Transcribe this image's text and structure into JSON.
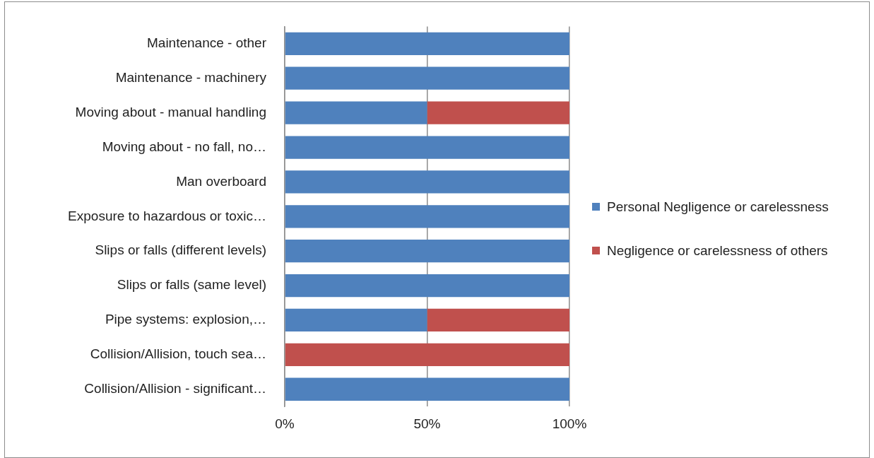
{
  "chart_data": {
    "type": "bar",
    "orientation": "horizontal",
    "stacked": true,
    "categories": [
      "Maintenance - other",
      "Maintenance - machinery",
      "Moving about - manual handling",
      "Moving about - no fall, no…",
      "Man overboard",
      "Exposure to hazardous or toxic…",
      "Slips or falls (different levels)",
      "Slips or falls (same level)",
      "Pipe systems: explosion,…",
      "Collision/Allision, touch sea…",
      "Collision/Allision - significant…"
    ],
    "series": [
      {
        "name": "Personal Negligence or carelessness",
        "color": "#4f81bd",
        "values": [
          100,
          100,
          50,
          100,
          100,
          100,
          100,
          100,
          50,
          0,
          100
        ]
      },
      {
        "name": "Negligence or carelessness of others",
        "color": "#c0504d",
        "values": [
          0,
          0,
          50,
          0,
          0,
          0,
          0,
          0,
          50,
          100,
          0
        ]
      }
    ],
    "xlim": [
      0,
      100
    ],
    "xticks": [
      {
        "value": 0,
        "label": "0%"
      },
      {
        "value": 50,
        "label": "50%"
      },
      {
        "value": 100,
        "label": "100%"
      }
    ],
    "grid": "x",
    "legend": "right"
  }
}
